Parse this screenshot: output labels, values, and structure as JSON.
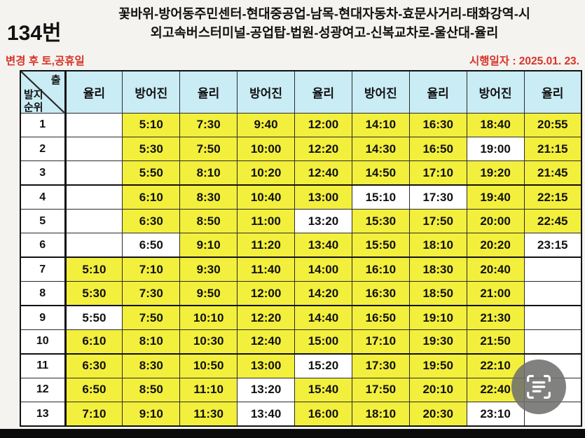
{
  "header": {
    "route_number": "134번",
    "route_line1": "꽃바위-방어동주민센터-현대중공업-남목-현대자동차-효문사거리-태화강역-시",
    "route_line2": "외고속버스터미널-공업탑-법원-성광여고-신복교차로-울산대-율리"
  },
  "subheader": {
    "left_note": "변경 후 토,공휴일",
    "right_note": "시행일자 : 2025.01. 23."
  },
  "table": {
    "corner": {
      "top": "출",
      "left_line1": "발지",
      "left_line2": "순위"
    },
    "columns": [
      "율리",
      "방어진",
      "율리",
      "방어진",
      "율리",
      "방어진",
      "율리",
      "방어진",
      "율리"
    ],
    "group_breaks_after": [
      3,
      6,
      8,
      10
    ],
    "rows": [
      {
        "num": "1",
        "cells": [
          {
            "t": "",
            "hl": false
          },
          {
            "t": "5:10",
            "hl": true
          },
          {
            "t": "7:30",
            "hl": true
          },
          {
            "t": "9:40",
            "hl": true
          },
          {
            "t": "12:00",
            "hl": true
          },
          {
            "t": "14:10",
            "hl": true
          },
          {
            "t": "16:30",
            "hl": true
          },
          {
            "t": "18:40",
            "hl": true
          },
          {
            "t": "20:55",
            "hl": true
          }
        ]
      },
      {
        "num": "2",
        "cells": [
          {
            "t": "",
            "hl": false
          },
          {
            "t": "5:30",
            "hl": true
          },
          {
            "t": "7:50",
            "hl": true
          },
          {
            "t": "10:00",
            "hl": true
          },
          {
            "t": "12:20",
            "hl": true
          },
          {
            "t": "14:30",
            "hl": true
          },
          {
            "t": "16:50",
            "hl": true
          },
          {
            "t": "19:00",
            "hl": false
          },
          {
            "t": "21:15",
            "hl": true
          }
        ]
      },
      {
        "num": "3",
        "cells": [
          {
            "t": "",
            "hl": false
          },
          {
            "t": "5:50",
            "hl": true
          },
          {
            "t": "8:10",
            "hl": true
          },
          {
            "t": "10:20",
            "hl": true
          },
          {
            "t": "12:40",
            "hl": true
          },
          {
            "t": "14:50",
            "hl": true
          },
          {
            "t": "17:10",
            "hl": true
          },
          {
            "t": "19:20",
            "hl": true
          },
          {
            "t": "21:45",
            "hl": true
          }
        ]
      },
      {
        "num": "4",
        "cells": [
          {
            "t": "",
            "hl": false
          },
          {
            "t": "6:10",
            "hl": true
          },
          {
            "t": "8:30",
            "hl": true
          },
          {
            "t": "10:40",
            "hl": true
          },
          {
            "t": "13:00",
            "hl": true
          },
          {
            "t": "15:10",
            "hl": false
          },
          {
            "t": "17:30",
            "hl": false
          },
          {
            "t": "19:40",
            "hl": true
          },
          {
            "t": "22:15",
            "hl": true
          }
        ]
      },
      {
        "num": "5",
        "cells": [
          {
            "t": "",
            "hl": false
          },
          {
            "t": "6:30",
            "hl": true
          },
          {
            "t": "8:50",
            "hl": true
          },
          {
            "t": "11:00",
            "hl": true
          },
          {
            "t": "13:20",
            "hl": false
          },
          {
            "t": "15:30",
            "hl": true
          },
          {
            "t": "17:50",
            "hl": true
          },
          {
            "t": "20:00",
            "hl": true
          },
          {
            "t": "22:45",
            "hl": true
          }
        ]
      },
      {
        "num": "6",
        "cells": [
          {
            "t": "",
            "hl": false
          },
          {
            "t": "6:50",
            "hl": false
          },
          {
            "t": "9:10",
            "hl": true
          },
          {
            "t": "11:20",
            "hl": true
          },
          {
            "t": "13:40",
            "hl": true
          },
          {
            "t": "15:50",
            "hl": true
          },
          {
            "t": "18:10",
            "hl": true
          },
          {
            "t": "20:20",
            "hl": true
          },
          {
            "t": "23:15",
            "hl": false
          }
        ]
      },
      {
        "num": "7",
        "cells": [
          {
            "t": "5:10",
            "hl": true
          },
          {
            "t": "7:10",
            "hl": true
          },
          {
            "t": "9:30",
            "hl": true
          },
          {
            "t": "11:40",
            "hl": true
          },
          {
            "t": "14:00",
            "hl": true
          },
          {
            "t": "16:10",
            "hl": true
          },
          {
            "t": "18:30",
            "hl": true
          },
          {
            "t": "20:40",
            "hl": true
          },
          {
            "t": "",
            "hl": false
          }
        ]
      },
      {
        "num": "8",
        "cells": [
          {
            "t": "5:30",
            "hl": true
          },
          {
            "t": "7:30",
            "hl": true
          },
          {
            "t": "9:50",
            "hl": true
          },
          {
            "t": "12:00",
            "hl": true
          },
          {
            "t": "14:20",
            "hl": true
          },
          {
            "t": "16:30",
            "hl": true
          },
          {
            "t": "18:50",
            "hl": true
          },
          {
            "t": "21:00",
            "hl": true
          },
          {
            "t": "",
            "hl": false
          }
        ]
      },
      {
        "num": "9",
        "cells": [
          {
            "t": "5:50",
            "hl": false
          },
          {
            "t": "7:50",
            "hl": true
          },
          {
            "t": "10:10",
            "hl": true
          },
          {
            "t": "12:20",
            "hl": true
          },
          {
            "t": "14:40",
            "hl": true
          },
          {
            "t": "16:50",
            "hl": true
          },
          {
            "t": "19:10",
            "hl": true
          },
          {
            "t": "21:30",
            "hl": true
          },
          {
            "t": "",
            "hl": false
          }
        ]
      },
      {
        "num": "10",
        "cells": [
          {
            "t": "6:10",
            "hl": true
          },
          {
            "t": "8:10",
            "hl": true
          },
          {
            "t": "10:30",
            "hl": true
          },
          {
            "t": "12:40",
            "hl": true
          },
          {
            "t": "15:00",
            "hl": true
          },
          {
            "t": "17:10",
            "hl": true
          },
          {
            "t": "19:30",
            "hl": true
          },
          {
            "t": "21:50",
            "hl": true
          },
          {
            "t": "",
            "hl": false
          }
        ]
      },
      {
        "num": "11",
        "cells": [
          {
            "t": "6:30",
            "hl": true
          },
          {
            "t": "8:30",
            "hl": true
          },
          {
            "t": "10:50",
            "hl": true
          },
          {
            "t": "13:00",
            "hl": true
          },
          {
            "t": "15:20",
            "hl": false
          },
          {
            "t": "17:30",
            "hl": true
          },
          {
            "t": "19:50",
            "hl": true
          },
          {
            "t": "22:10",
            "hl": true
          },
          {
            "t": "",
            "hl": false
          }
        ]
      },
      {
        "num": "12",
        "cells": [
          {
            "t": "6:50",
            "hl": true
          },
          {
            "t": "8:50",
            "hl": true
          },
          {
            "t": "11:10",
            "hl": true
          },
          {
            "t": "13:20",
            "hl": false
          },
          {
            "t": "15:40",
            "hl": true
          },
          {
            "t": "17:50",
            "hl": true
          },
          {
            "t": "20:10",
            "hl": true
          },
          {
            "t": "22:40",
            "hl": true
          },
          {
            "t": "",
            "hl": false
          }
        ]
      },
      {
        "num": "13",
        "cells": [
          {
            "t": "7:10",
            "hl": true
          },
          {
            "t": "9:10",
            "hl": true
          },
          {
            "t": "11:30",
            "hl": true
          },
          {
            "t": "13:40",
            "hl": false
          },
          {
            "t": "16:00",
            "hl": true
          },
          {
            "t": "18:10",
            "hl": true
          },
          {
            "t": "20:30",
            "hl": true
          },
          {
            "t": "23:10",
            "hl": false
          },
          {
            "t": "",
            "hl": false
          }
        ]
      }
    ]
  },
  "fab": {
    "icon": "scan-text-icon"
  },
  "colors": {
    "highlight_yellow": "#f3ef3d",
    "header_blue": "#c9ecf5",
    "note_red": "#d93327",
    "border_dark": "#2b2b2b",
    "page_background": "#f4f3f0"
  }
}
